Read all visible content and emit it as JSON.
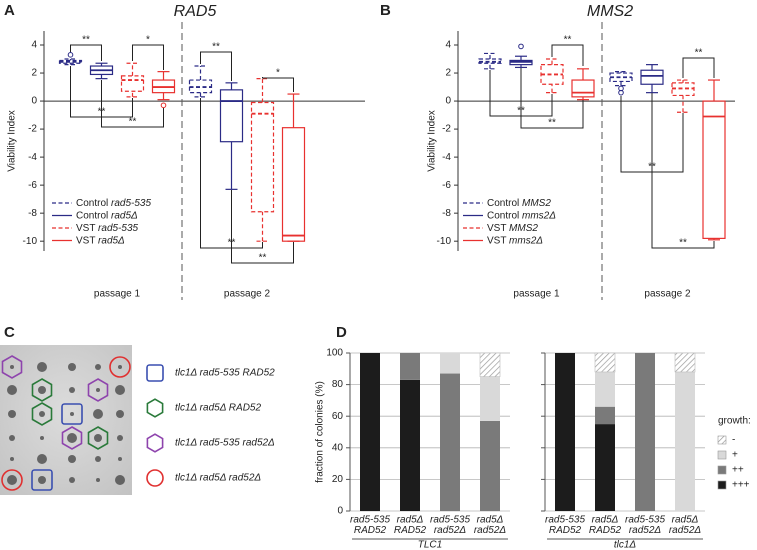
{
  "panel_labels": [
    "A",
    "B",
    "C",
    "D"
  ],
  "chart_data": [
    {
      "type": "box",
      "title": "RAD5",
      "ylabel": "Viability Index",
      "categories": [
        "passage 1",
        "passage 2"
      ],
      "ylim": [
        -10.7,
        5
      ],
      "yticks": [
        -10,
        -8,
        -6,
        -4,
        -2,
        0,
        2,
        4
      ],
      "series": [
        {
          "name": "Control rad5-535",
          "color": "#2b2b86",
          "dashed": true,
          "values": [
            [
              2.6,
              2.7,
              2.8,
              2.9,
              3.0
            ],
            [
              0.3,
              0.6,
              1.0,
              1.5,
              2.5
            ]
          ],
          "outliers": [
            [
              3.3
            ],
            []
          ]
        },
        {
          "name": "Control rad5Δ",
          "color": "#2b2b86",
          "dashed": false,
          "values": [
            [
              1.6,
              1.9,
              2.2,
              2.5,
              2.7
            ],
            [
              -6.3,
              -2.9,
              0,
              0.8,
              1.3
            ]
          ],
          "outliers": [
            [],
            []
          ]
        },
        {
          "name": "VST rad5-535",
          "color": "#e8312f",
          "dashed": true,
          "values": [
            [
              0.3,
              0.7,
              1.5,
              1.8,
              2.7
            ],
            [
              -10,
              -7.9,
              -0.9,
              -0.1,
              1.6
            ]
          ],
          "outliers": [
            [],
            []
          ]
        },
        {
          "name": "VST rad5Δ",
          "color": "#e8312f",
          "dashed": false,
          "values": [
            [
              0.1,
              0.6,
              1.0,
              1.5,
              2.1
            ],
            [
              -10,
              -10,
              -9.6,
              -1.9,
              0.5
            ]
          ],
          "outliers": [
            [
              -0.3
            ],
            []
          ]
        }
      ],
      "annotations": [
        "**",
        "*",
        "**",
        "**",
        "**",
        "*",
        "**",
        "**"
      ]
    },
    {
      "type": "box",
      "title": "MMS2",
      "ylabel": "Viability Index",
      "categories": [
        "passage 1",
        "passage 2"
      ],
      "ylim": [
        -10.7,
        5
      ],
      "yticks": [
        -10,
        -8,
        -6,
        -4,
        -2,
        0,
        2,
        4
      ],
      "series": [
        {
          "name": "Control MMS2",
          "color": "#2b2b86",
          "dashed": true,
          "values": [
            [
              2.3,
              2.7,
              2.8,
              3.0,
              3.4
            ],
            [
              1.1,
              1.4,
              1.7,
              2.0,
              2.1
            ]
          ],
          "outliers": [
            [],
            [
              0.9,
              0.6
            ]
          ]
        },
        {
          "name": "Control mms2Δ",
          "color": "#2b2b86",
          "dashed": false,
          "values": [
            [
              2.4,
              2.6,
              2.8,
              2.9,
              3.2
            ],
            [
              0.6,
              1.2,
              1.8,
              2.2,
              2.6
            ]
          ],
          "outliers": [
            [
              3.9
            ],
            []
          ]
        },
        {
          "name": "VST MMS2",
          "color": "#e8312f",
          "dashed": true,
          "values": [
            [
              0.6,
              1.2,
              1.9,
              2.6,
              3.0
            ],
            [
              -0.8,
              0.4,
              0.9,
              1.3,
              1.5
            ]
          ],
          "outliers": [
            [],
            []
          ]
        },
        {
          "name": "VST mms2Δ",
          "color": "#e8312f",
          "dashed": false,
          "values": [
            [
              0.1,
              0.3,
              0.6,
              1.5,
              2.3
            ],
            [
              -9.9,
              -9.8,
              -1.1,
              0,
              1.5
            ]
          ],
          "outliers": [
            [],
            []
          ]
        }
      ],
      "annotations": [
        "**",
        "**",
        "**",
        "**",
        "**",
        "**"
      ]
    },
    {
      "type": "stacked_bar",
      "ylabel": "fraction of colonies (%)",
      "categories": [
        [
          "rad5-535",
          "RAD52"
        ],
        [
          "rad5Δ",
          "RAD52"
        ],
        [
          "rad5-535",
          "rad52Δ"
        ],
        [
          "rad5Δ",
          "rad52Δ"
        ],
        [
          "rad5-535",
          "RAD52"
        ],
        [
          "rad5Δ",
          "RAD52"
        ],
        [
          "rad5-535",
          "rad52Δ"
        ],
        [
          "rad5Δ",
          "rad52Δ"
        ]
      ],
      "group_labels": [
        "TLC1",
        "tlc1Δ"
      ],
      "ylim": [
        0,
        100
      ],
      "yticks": [
        0,
        20,
        40,
        60,
        80,
        100
      ],
      "grid": true,
      "legend_title": "growth:",
      "series": [
        {
          "name": "+++",
          "color": "#1c1c1c",
          "values": [
            100,
            83,
            0,
            0,
            100,
            55,
            0,
            0
          ]
        },
        {
          "name": "++",
          "color": "#7a7a7a",
          "values": [
            0,
            17,
            87,
            57,
            0,
            11,
            100,
            0
          ]
        },
        {
          "name": "+",
          "color": "#d9d9d9",
          "values": [
            0,
            0,
            13,
            28,
            0,
            22,
            0,
            88
          ]
        },
        {
          "name": "-",
          "color": "#ffffff",
          "pattern": "hatch",
          "values": [
            0,
            0,
            0,
            15,
            0,
            12,
            0,
            12
          ]
        }
      ]
    }
  ],
  "panel_c": {
    "legend": [
      {
        "label": "tlc1Δ rad5-535 RAD52",
        "color": "#3a4fb0",
        "shape": "square"
      },
      {
        "label": "tlc1Δ rad5Δ RAD52",
        "color": "#2a7a3a",
        "shape": "hexagon"
      },
      {
        "label": "tlc1Δ rad5-535 rad52Δ",
        "color": "#8e44ad",
        "shape": "hexagon"
      },
      {
        "label": "tlc1Δ rad5Δ rad52Δ",
        "color": "#e03030",
        "shape": "circle"
      }
    ]
  }
}
